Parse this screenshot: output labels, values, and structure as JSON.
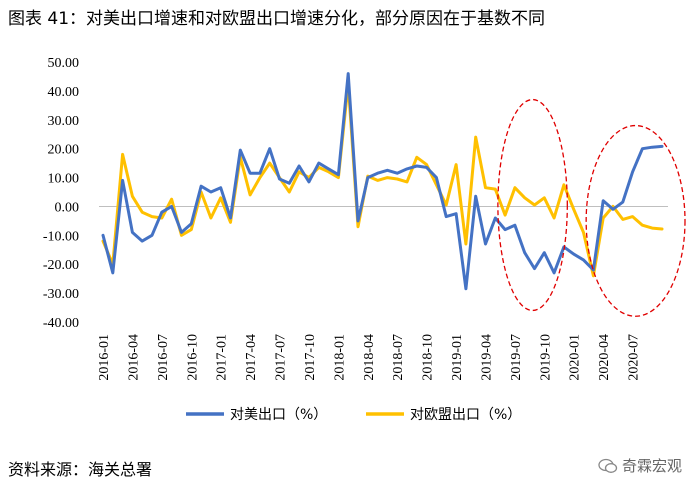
{
  "header": {
    "title": "图表 41：对美出口增速和对欧盟出口增速分化，部分原因在于基数不同"
  },
  "footer": {
    "source": "资料来源：海关总署",
    "watermark": "奇霖宏观"
  },
  "chart_data": {
    "type": "line",
    "title": "图表 41：对美出口增速和对欧盟出口增速分化，部分原因在于基数不同",
    "xlabel": "",
    "ylabel": "",
    "ylim": [
      -40,
      50
    ],
    "yticks": [
      "50.00",
      "40.00",
      "30.00",
      "20.00",
      "10.00",
      "0.00",
      "-10.00",
      "-20.00",
      "-30.00",
      "-40.00"
    ],
    "x": [
      "2016-01",
      "2016-02",
      "2016-03",
      "2016-04",
      "2016-05",
      "2016-06",
      "2016-07",
      "2016-08",
      "2016-09",
      "2016-10",
      "2016-11",
      "2016-12",
      "2017-01",
      "2017-02",
      "2017-03",
      "2017-04",
      "2017-05",
      "2017-06",
      "2017-07",
      "2017-08",
      "2017-09",
      "2017-10",
      "2017-11",
      "2017-12",
      "2018-01",
      "2018-02",
      "2018-03",
      "2018-04",
      "2018-05",
      "2018-06",
      "2018-07",
      "2018-08",
      "2018-09",
      "2018-10",
      "2018-11",
      "2018-12",
      "2019-01",
      "2019-02",
      "2019-03",
      "2019-04",
      "2019-05",
      "2019-06",
      "2019-07",
      "2019-08",
      "2019-09",
      "2019-10",
      "2019-11",
      "2019-12",
      "2020-01",
      "2020-02",
      "2020-03",
      "2020-04",
      "2020-05",
      "2020-06",
      "2020-07",
      "2020-08",
      "2020-09",
      "2020-10"
    ],
    "xticks": [
      "2016-01",
      "2016-04",
      "2016-07",
      "2016-10",
      "2017-01",
      "2017-04",
      "2017-07",
      "2017-10",
      "2018-01",
      "2018-04",
      "2018-07",
      "2018-10",
      "2019-01",
      "2019-04",
      "2019-07",
      "2019-10",
      "2020-01",
      "2020-04",
      "2020-07"
    ],
    "legend_position": "bottom",
    "grid": false,
    "series": [
      {
        "name": "对美出口（%）",
        "color": "#4472C4",
        "values": [
          -10,
          -23,
          9,
          -9,
          -12,
          -10,
          -2,
          0,
          -9,
          -6,
          7,
          5,
          6.5,
          -4,
          19.5,
          11.5,
          11.5,
          20,
          9.5,
          8,
          14,
          8.5,
          15,
          13,
          11,
          46,
          -5,
          10,
          11.5,
          12.5,
          11.5,
          13,
          14,
          13.5,
          10,
          -3.5,
          -2.5,
          -28.5,
          3.5,
          -13,
          -4,
          -8,
          -6.5,
          -16,
          -21.5,
          -16,
          -23,
          -14,
          -16.5,
          -18.5,
          -22,
          2,
          -1,
          1.5,
          12,
          20,
          20.5,
          20.8
        ]
      },
      {
        "name": "对欧盟出口（%）",
        "color": "#FFC000",
        "values": [
          -12,
          -20,
          18,
          3.5,
          -2,
          -3.5,
          -4,
          2.5,
          -10,
          -8,
          5,
          -4,
          3,
          -5.5,
          17,
          4,
          10,
          15,
          10,
          5,
          12,
          10,
          13.5,
          12,
          10,
          42.5,
          -7,
          10.5,
          9,
          10,
          9.5,
          8.5,
          17,
          14.5,
          7.5,
          0.5,
          14.5,
          -13,
          24,
          6.5,
          6,
          -3,
          6.5,
          3,
          0.5,
          3,
          -4,
          7.5,
          -1,
          -9,
          -24,
          -4,
          0,
          -4.5,
          -3.5,
          -6.5,
          -7.5,
          -7.8
        ]
      }
    ],
    "annotations": [
      "dashed red ellipse highlighting 2019-07 to 2019-10",
      "dashed red ellipse highlighting 2020-04 to 2020-10"
    ]
  }
}
